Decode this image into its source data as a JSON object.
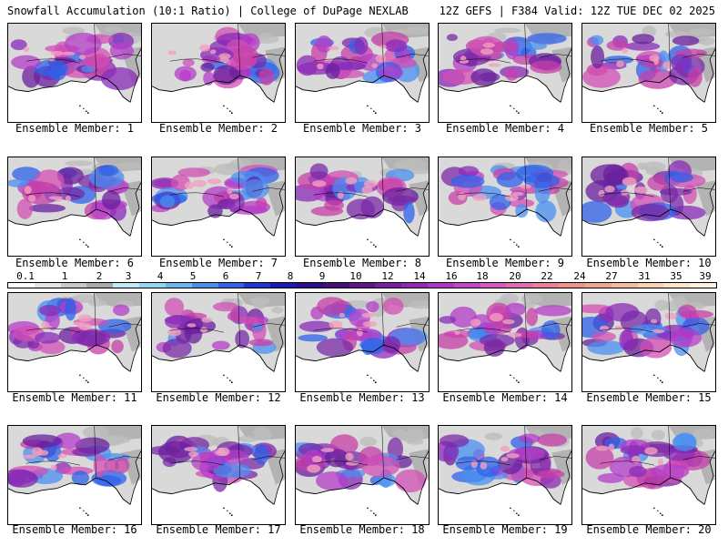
{
  "header": {
    "title_left": "Snowfall Accumulation (10:1 Ratio) | College of DuPage NEXLAB",
    "title_right": "12Z GEFS | F384 Valid: 12Z TUE DEC 02 2025"
  },
  "members": [
    {
      "label": "Ensemble Member: 1",
      "member": 1
    },
    {
      "label": "Ensemble Member: 2",
      "member": 2
    },
    {
      "label": "Ensemble Member: 3",
      "member": 3
    },
    {
      "label": "Ensemble Member: 4",
      "member": 4
    },
    {
      "label": "Ensemble Member: 5",
      "member": 5
    },
    {
      "label": "Ensemble Member: 6",
      "member": 6
    },
    {
      "label": "Ensemble Member: 7",
      "member": 7
    },
    {
      "label": "Ensemble Member: 8",
      "member": 8
    },
    {
      "label": "Ensemble Member: 9",
      "member": 9
    },
    {
      "label": "Ensemble Member: 10",
      "member": 10
    },
    {
      "label": "Ensemble Member: 11",
      "member": 11
    },
    {
      "label": "Ensemble Member: 12",
      "member": 12
    },
    {
      "label": "Ensemble Member: 13",
      "member": 13
    },
    {
      "label": "Ensemble Member: 14",
      "member": 14
    },
    {
      "label": "Ensemble Member: 15",
      "member": 15
    },
    {
      "label": "Ensemble Member: 16",
      "member": 16
    },
    {
      "label": "Ensemble Member: 17",
      "member": 17
    },
    {
      "label": "Ensemble Member: 18",
      "member": 18
    },
    {
      "label": "Ensemble Member: 19",
      "member": 19
    },
    {
      "label": "Ensemble Member: 20",
      "member": 20
    }
  ],
  "scale": {
    "labels": [
      "0.1",
      "1",
      "2",
      "3",
      "4",
      "5",
      "6",
      "7",
      "8",
      "9",
      "10",
      "12",
      "14",
      "16",
      "18",
      "20",
      "22",
      "24",
      "27",
      "31",
      "35",
      "39"
    ],
    "colors": [
      "#ffffff",
      "#e6e6e6",
      "#c8c8c8",
      "#a8a8a8",
      "#bfe9f5",
      "#8fd6ee",
      "#6cb6f0",
      "#4a8ff0",
      "#2f62e8",
      "#2236d8",
      "#1a1ab4",
      "#2b0f8c",
      "#46107a",
      "#62148a",
      "#7a1ca0",
      "#9326b4",
      "#ad34c6",
      "#c444cc",
      "#d657c4",
      "#e26aae",
      "#ec7e9a",
      "#ee9488",
      "#f0a88a",
      "#f4bc98",
      "#f8d2ae",
      "#fbe4c8",
      "#fdf2e2"
    ]
  }
}
